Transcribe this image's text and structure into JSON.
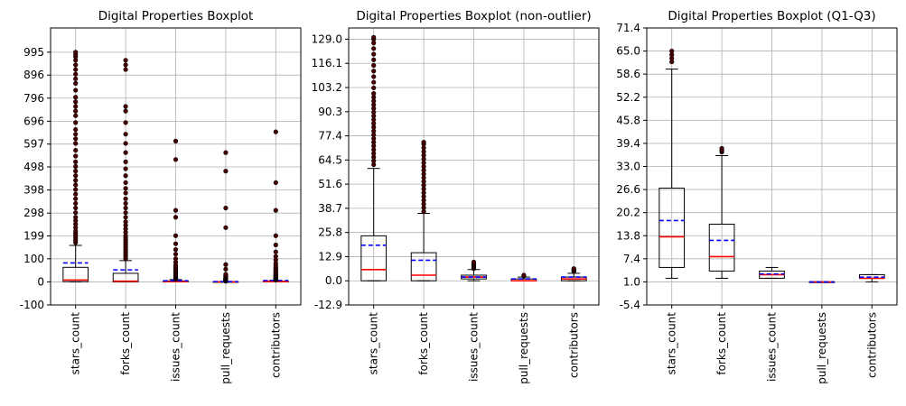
{
  "chart_data": [
    {
      "type": "boxplot",
      "title": "Digital Properties Boxplot",
      "categories": [
        "stars_count",
        "forks_count",
        "issues_count",
        "pull_requests",
        "contributors"
      ],
      "ylim": [
        -100,
        1100
      ],
      "yticks": [
        "-100",
        "0",
        "100",
        "199",
        "298",
        "398",
        "498",
        "597",
        "696",
        "796",
        "896",
        "995"
      ],
      "grid": true,
      "boxes": [
        {
          "whislo": 0,
          "q1": 1,
          "med": 8,
          "q3": 63,
          "whishi": 158,
          "mean": 82,
          "fliers": [
            170,
            180,
            190,
            200,
            210,
            220,
            235,
            250,
            265,
            280,
            300,
            320,
            340,
            360,
            380,
            400,
            420,
            440,
            460,
            480,
            500,
            520,
            545,
            570,
            600,
            620,
            640,
            660,
            690,
            720,
            740,
            760,
            780,
            800,
            830,
            860,
            880,
            900,
            920,
            940,
            960,
            975,
            985,
            995
          ]
        },
        {
          "whislo": 0,
          "q1": 0,
          "med": 3,
          "q3": 37,
          "whishi": 92,
          "mean": 52,
          "fliers": [
            100,
            110,
            120,
            130,
            140,
            150,
            160,
            170,
            180,
            190,
            200,
            215,
            230,
            245,
            260,
            280,
            300,
            320,
            340,
            360,
            385,
            405,
            430,
            460,
            490,
            520,
            560,
            600,
            640,
            690,
            740,
            760,
            920,
            940,
            960
          ]
        },
        {
          "whislo": 0,
          "q1": 0,
          "med": 1,
          "q3": 4,
          "whishi": 10,
          "mean": 5,
          "fliers": [
            12,
            15,
            18,
            21,
            24,
            27,
            30,
            34,
            38,
            42,
            46,
            52,
            58,
            65,
            72,
            85,
            100,
            120,
            140,
            165,
            200,
            280,
            310,
            530,
            610
          ]
        },
        {
          "whislo": 0,
          "q1": 0,
          "med": 0,
          "q3": 1,
          "whishi": 2,
          "mean": 1,
          "fliers": [
            3,
            4,
            5,
            6,
            7,
            8,
            9,
            10,
            11,
            12,
            13,
            14,
            15,
            17,
            20,
            24,
            28,
            33,
            55,
            75,
            235,
            320,
            480,
            560
          ]
        },
        {
          "whislo": 0,
          "q1": 0,
          "med": 1,
          "q3": 3,
          "whishi": 7,
          "mean": 6,
          "fliers": [
            8,
            10,
            12,
            14,
            16,
            18,
            20,
            22,
            25,
            28,
            31,
            35,
            40,
            45,
            50,
            56,
            62,
            70,
            80,
            95,
            110,
            130,
            160,
            200,
            310,
            430,
            650
          ]
        }
      ]
    },
    {
      "type": "boxplot",
      "title": "Digital Properties Boxplot (non-outlier)",
      "categories": [
        "stars_count",
        "forks_count",
        "issues_count",
        "pull_requests",
        "contributors"
      ],
      "ylim": [
        -12.9,
        135
      ],
      "yticks": [
        "-12.9",
        "0.0",
        "12.9",
        "25.8",
        "38.7",
        "51.6",
        "64.5",
        "77.4",
        "90.3",
        "103.2",
        "116.1",
        "129.0"
      ],
      "grid": true,
      "boxes": [
        {
          "whislo": 0,
          "q1": 0,
          "med": 6,
          "q3": 24,
          "whishi": 60,
          "mean": 19,
          "fliers": [
            62,
            64,
            66,
            68,
            70,
            72,
            74,
            76,
            78,
            80,
            82,
            84,
            86,
            88,
            90,
            92,
            94,
            96,
            98,
            100,
            103,
            106,
            109,
            112,
            115,
            118,
            121,
            124,
            127,
            129,
            130
          ]
        },
        {
          "whislo": 0,
          "q1": 0,
          "med": 3,
          "q3": 15,
          "whishi": 36,
          "mean": 11,
          "fliers": [
            37,
            39,
            41,
            43,
            45,
            47,
            49,
            51,
            53,
            55,
            57,
            59,
            61,
            63,
            65,
            67,
            69,
            71,
            73,
            74
          ]
        },
        {
          "whislo": 0,
          "q1": 1,
          "med": 2,
          "q3": 3,
          "whishi": 6,
          "mean": 2,
          "fliers": [
            6.5,
            7,
            7.5,
            8,
            8.5,
            9,
            9.5,
            10
          ]
        },
        {
          "whislo": 0,
          "q1": 0,
          "med": 0,
          "q3": 1,
          "whishi": 2,
          "mean": 1,
          "fliers": [
            2.5,
            3
          ]
        },
        {
          "whislo": 0,
          "q1": 0,
          "med": 1,
          "q3": 2,
          "whishi": 4,
          "mean": 2,
          "fliers": [
            5,
            5.5,
            6,
            6.5
          ]
        }
      ]
    },
    {
      "type": "boxplot",
      "title": "Digital Properties Boxplot (Q1-Q3)",
      "categories": [
        "stars_count",
        "forks_count",
        "issues_count",
        "pull_requests",
        "contributors"
      ],
      "ylim": [
        -5.4,
        71.4
      ],
      "yticks": [
        "-5.4",
        "1.0",
        "7.4",
        "13.8",
        "20.2",
        "26.6",
        "33.0",
        "39.4",
        "45.8",
        "52.2",
        "58.6",
        "65.0",
        "71.4"
      ],
      "grid": true,
      "boxes": [
        {
          "whislo": 2,
          "q1": 5,
          "med": 13.5,
          "q3": 27,
          "whishi": 60,
          "mean": 18,
          "fliers": [
            62,
            63,
            64,
            65
          ]
        },
        {
          "whislo": 2,
          "q1": 4,
          "med": 8,
          "q3": 17,
          "whishi": 36,
          "mean": 12.5,
          "fliers": [
            37,
            37.5,
            38
          ]
        },
        {
          "whislo": 2,
          "q1": 2,
          "med": 3,
          "q3": 4,
          "whishi": 5,
          "mean": 3.2,
          "fliers": []
        },
        {
          "whislo": 1,
          "q1": 1,
          "med": 1,
          "q3": 1,
          "whishi": 1,
          "mean": 1,
          "fliers": []
        },
        {
          "whislo": 1,
          "q1": 2,
          "med": 2,
          "q3": 3,
          "whishi": 3,
          "mean": 2.3,
          "fliers": []
        }
      ]
    }
  ]
}
